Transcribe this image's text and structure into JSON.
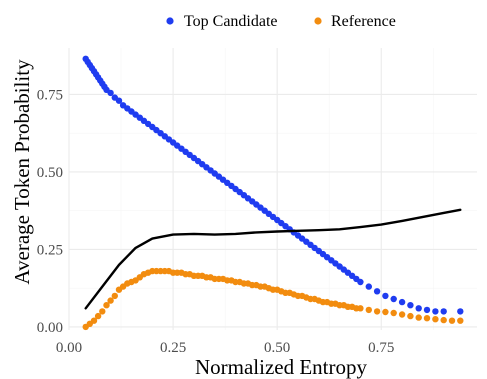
{
  "chart_data": {
    "type": "scatter",
    "title": "",
    "xlabel": "Normalized Entropy",
    "ylabel": "Average Token Probability",
    "xlim": [
      0.0,
      0.98
    ],
    "ylim": [
      -0.01,
      0.9
    ],
    "x_ticks": [
      0.0,
      0.25,
      0.5,
      0.75
    ],
    "x_tick_labels": [
      "0.00",
      "0.25",
      "0.50",
      "0.75"
    ],
    "y_ticks": [
      0.0,
      0.25,
      0.5,
      0.75
    ],
    "y_tick_labels": [
      "0.00",
      "0.25",
      "0.50",
      "0.75"
    ],
    "grid": true,
    "legend_position": "top",
    "series": [
      {
        "name": "Top Candidate",
        "color": "#1f3cf0",
        "kind": "points",
        "points": [
          [
            0.04,
            0.865
          ],
          [
            0.045,
            0.855
          ],
          [
            0.05,
            0.845
          ],
          [
            0.055,
            0.835
          ],
          [
            0.06,
            0.825
          ],
          [
            0.065,
            0.815
          ],
          [
            0.07,
            0.805
          ],
          [
            0.075,
            0.795
          ],
          [
            0.08,
            0.785
          ],
          [
            0.085,
            0.775
          ],
          [
            0.09,
            0.765
          ],
          [
            0.1,
            0.755
          ],
          [
            0.11,
            0.74
          ],
          [
            0.12,
            0.73
          ],
          [
            0.13,
            0.715
          ],
          [
            0.14,
            0.705
          ],
          [
            0.15,
            0.695
          ],
          [
            0.16,
            0.685
          ],
          [
            0.17,
            0.675
          ],
          [
            0.18,
            0.665
          ],
          [
            0.19,
            0.655
          ],
          [
            0.2,
            0.645
          ],
          [
            0.21,
            0.635
          ],
          [
            0.22,
            0.625
          ],
          [
            0.23,
            0.615
          ],
          [
            0.24,
            0.605
          ],
          [
            0.25,
            0.595
          ],
          [
            0.26,
            0.585
          ],
          [
            0.27,
            0.575
          ],
          [
            0.28,
            0.565
          ],
          [
            0.29,
            0.555
          ],
          [
            0.3,
            0.545
          ],
          [
            0.31,
            0.535
          ],
          [
            0.32,
            0.525
          ],
          [
            0.33,
            0.515
          ],
          [
            0.34,
            0.505
          ],
          [
            0.35,
            0.495
          ],
          [
            0.36,
            0.485
          ],
          [
            0.37,
            0.475
          ],
          [
            0.38,
            0.465
          ],
          [
            0.39,
            0.455
          ],
          [
            0.4,
            0.445
          ],
          [
            0.41,
            0.435
          ],
          [
            0.42,
            0.425
          ],
          [
            0.43,
            0.415
          ],
          [
            0.44,
            0.405
          ],
          [
            0.45,
            0.395
          ],
          [
            0.46,
            0.385
          ],
          [
            0.47,
            0.375
          ],
          [
            0.48,
            0.365
          ],
          [
            0.49,
            0.355
          ],
          [
            0.5,
            0.345
          ],
          [
            0.51,
            0.335
          ],
          [
            0.52,
            0.325
          ],
          [
            0.53,
            0.315
          ],
          [
            0.54,
            0.305
          ],
          [
            0.55,
            0.295
          ],
          [
            0.56,
            0.285
          ],
          [
            0.57,
            0.275
          ],
          [
            0.58,
            0.265
          ],
          [
            0.59,
            0.255
          ],
          [
            0.6,
            0.245
          ],
          [
            0.61,
            0.235
          ],
          [
            0.62,
            0.225
          ],
          [
            0.63,
            0.215
          ],
          [
            0.64,
            0.205
          ],
          [
            0.65,
            0.195
          ],
          [
            0.66,
            0.185
          ],
          [
            0.67,
            0.175
          ],
          [
            0.68,
            0.165
          ],
          [
            0.69,
            0.155
          ],
          [
            0.7,
            0.145
          ],
          [
            0.72,
            0.13
          ],
          [
            0.74,
            0.115
          ],
          [
            0.76,
            0.1
          ],
          [
            0.78,
            0.09
          ],
          [
            0.8,
            0.08
          ],
          [
            0.82,
            0.07
          ],
          [
            0.84,
            0.06
          ],
          [
            0.86,
            0.055
          ],
          [
            0.88,
            0.05
          ],
          [
            0.9,
            0.05
          ],
          [
            0.94,
            0.05
          ]
        ]
      },
      {
        "name": "Reference",
        "color": "#f28c0f",
        "kind": "points",
        "points": [
          [
            0.04,
            0.0
          ],
          [
            0.05,
            0.01
          ],
          [
            0.06,
            0.02
          ],
          [
            0.07,
            0.035
          ],
          [
            0.08,
            0.05
          ],
          [
            0.09,
            0.07
          ],
          [
            0.1,
            0.085
          ],
          [
            0.11,
            0.1
          ],
          [
            0.12,
            0.12
          ],
          [
            0.13,
            0.13
          ],
          [
            0.14,
            0.14
          ],
          [
            0.15,
            0.145
          ],
          [
            0.16,
            0.15
          ],
          [
            0.17,
            0.16
          ],
          [
            0.18,
            0.17
          ],
          [
            0.19,
            0.175
          ],
          [
            0.2,
            0.18
          ],
          [
            0.21,
            0.18
          ],
          [
            0.22,
            0.18
          ],
          [
            0.23,
            0.18
          ],
          [
            0.24,
            0.18
          ],
          [
            0.25,
            0.175
          ],
          [
            0.26,
            0.175
          ],
          [
            0.27,
            0.175
          ],
          [
            0.28,
            0.17
          ],
          [
            0.29,
            0.17
          ],
          [
            0.3,
            0.165
          ],
          [
            0.31,
            0.165
          ],
          [
            0.32,
            0.165
          ],
          [
            0.33,
            0.16
          ],
          [
            0.34,
            0.16
          ],
          [
            0.35,
            0.155
          ],
          [
            0.36,
            0.155
          ],
          [
            0.37,
            0.155
          ],
          [
            0.38,
            0.15
          ],
          [
            0.39,
            0.15
          ],
          [
            0.4,
            0.145
          ],
          [
            0.41,
            0.145
          ],
          [
            0.42,
            0.14
          ],
          [
            0.43,
            0.14
          ],
          [
            0.44,
            0.135
          ],
          [
            0.45,
            0.135
          ],
          [
            0.46,
            0.13
          ],
          [
            0.47,
            0.13
          ],
          [
            0.48,
            0.125
          ],
          [
            0.49,
            0.12
          ],
          [
            0.5,
            0.12
          ],
          [
            0.51,
            0.115
          ],
          [
            0.52,
            0.11
          ],
          [
            0.53,
            0.11
          ],
          [
            0.54,
            0.105
          ],
          [
            0.55,
            0.1
          ],
          [
            0.56,
            0.1
          ],
          [
            0.57,
            0.095
          ],
          [
            0.58,
            0.09
          ],
          [
            0.59,
            0.09
          ],
          [
            0.6,
            0.085
          ],
          [
            0.61,
            0.08
          ],
          [
            0.62,
            0.08
          ],
          [
            0.63,
            0.075
          ],
          [
            0.64,
            0.075
          ],
          [
            0.65,
            0.07
          ],
          [
            0.66,
            0.07
          ],
          [
            0.67,
            0.065
          ],
          [
            0.68,
            0.065
          ],
          [
            0.69,
            0.06
          ],
          [
            0.7,
            0.06
          ],
          [
            0.72,
            0.055
          ],
          [
            0.74,
            0.05
          ],
          [
            0.76,
            0.048
          ],
          [
            0.78,
            0.045
          ],
          [
            0.8,
            0.04
          ],
          [
            0.82,
            0.035
          ],
          [
            0.84,
            0.03
          ],
          [
            0.86,
            0.028
          ],
          [
            0.88,
            0.025
          ],
          [
            0.9,
            0.022
          ],
          [
            0.92,
            0.02
          ],
          [
            0.94,
            0.02
          ]
        ]
      },
      {
        "name": "",
        "color": "#000000",
        "kind": "line",
        "points": [
          [
            0.04,
            0.06
          ],
          [
            0.08,
            0.13
          ],
          [
            0.12,
            0.2
          ],
          [
            0.16,
            0.255
          ],
          [
            0.2,
            0.285
          ],
          [
            0.25,
            0.298
          ],
          [
            0.3,
            0.3
          ],
          [
            0.35,
            0.298
          ],
          [
            0.4,
            0.3
          ],
          [
            0.45,
            0.305
          ],
          [
            0.5,
            0.308
          ],
          [
            0.55,
            0.31
          ],
          [
            0.6,
            0.312
          ],
          [
            0.65,
            0.315
          ],
          [
            0.7,
            0.322
          ],
          [
            0.75,
            0.33
          ],
          [
            0.8,
            0.342
          ],
          [
            0.85,
            0.355
          ],
          [
            0.9,
            0.368
          ],
          [
            0.94,
            0.378
          ]
        ]
      }
    ]
  },
  "legend": {
    "items": [
      {
        "label": "Top Candidate",
        "color": "#1f3cf0"
      },
      {
        "label": "Reference",
        "color": "#f28c0f"
      }
    ]
  }
}
